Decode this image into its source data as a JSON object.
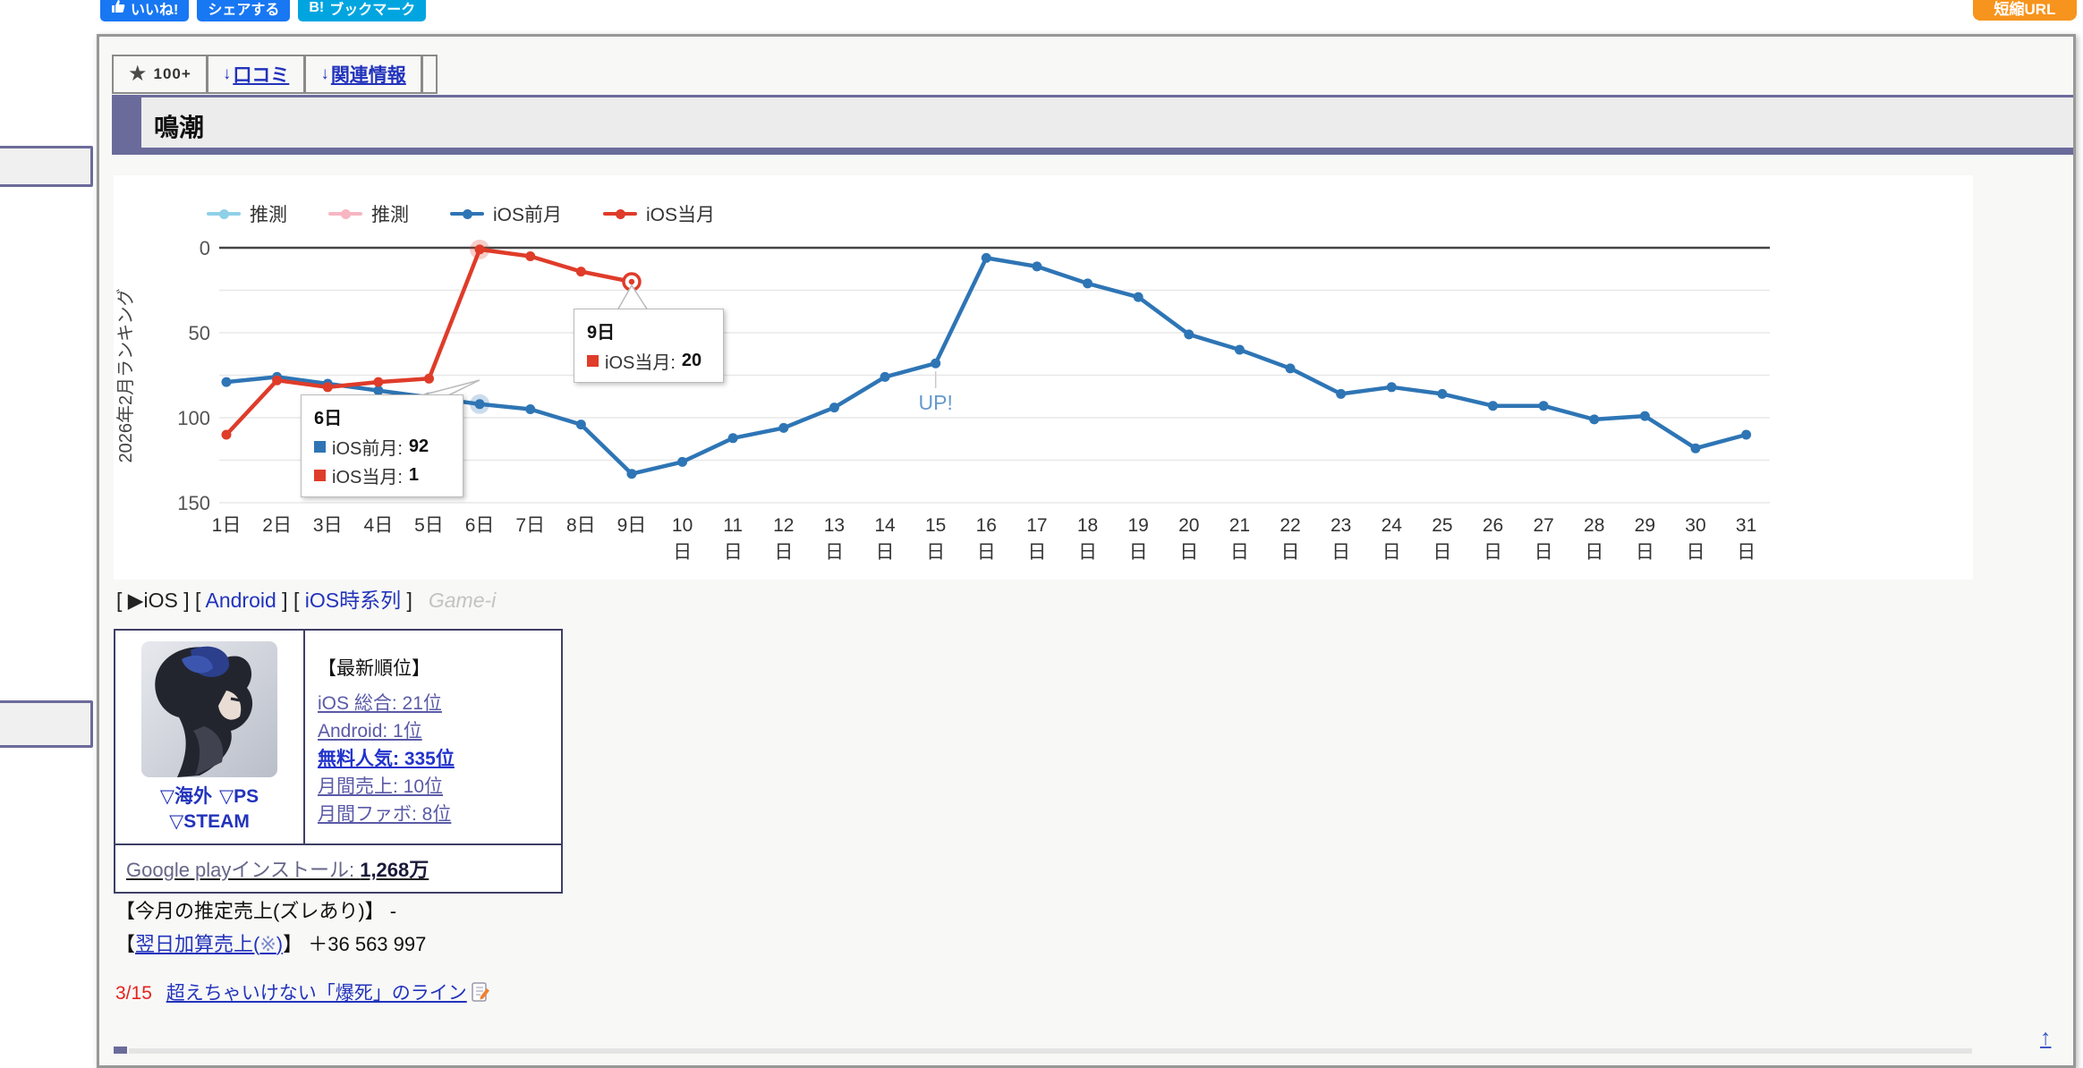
{
  "social": {
    "like": "いいね!",
    "share": "シェアする",
    "bookmark_prefix": "B!",
    "bookmark": "ブックマーク",
    "shorturl": "短縮URL"
  },
  "tabs": {
    "star": "★",
    "star_count": "100+",
    "arrow": "↓",
    "reviews": "口コミ",
    "related": "関連情報"
  },
  "page_title": "鳴潮",
  "chart_data": {
    "type": "line",
    "ylabel": "2026年2月ランキング",
    "y_ticks": [
      0,
      50,
      100,
      150
    ],
    "y_grid_step": 25,
    "ylim": [
      0,
      150
    ],
    "y_axis_inverted": true,
    "grid": true,
    "legend_position": "top",
    "x_labels": [
      "1日",
      "2日",
      "3日",
      "4日",
      "5日",
      "6日",
      "7日",
      "8日",
      "9日",
      "10日",
      "11日",
      "12日",
      "13日",
      "14日",
      "15日",
      "16日",
      "17日",
      "18日",
      "19日",
      "20日",
      "21日",
      "22日",
      "23日",
      "24日",
      "25日",
      "26日",
      "27日",
      "28日",
      "29日",
      "30日",
      "31日"
    ],
    "series": [
      {
        "name": "推測",
        "color": "#8fd0e8",
        "values": []
      },
      {
        "name": "推測",
        "color": "#f7b6c2",
        "values": []
      },
      {
        "name": "iOS前月",
        "color": "#2e75b5",
        "values": [
          79,
          76,
          80,
          84,
          88,
          92,
          95,
          104,
          133,
          126,
          112,
          106,
          94,
          76,
          68,
          6,
          11,
          21,
          29,
          51,
          60,
          71,
          86,
          82,
          86,
          93,
          93,
          101,
          99,
          118,
          110
        ]
      },
      {
        "name": "iOS当月",
        "color": "#df3c2a",
        "values": [
          110,
          78,
          82,
          79,
          77,
          1,
          5,
          14,
          20
        ]
      }
    ],
    "annotations": [
      {
        "text": "UP!",
        "day": 15,
        "series": "iOS前月",
        "color": "#6699cc"
      }
    ],
    "highlight_point": {
      "series": "iOS当月",
      "day": 9,
      "style": "ring"
    },
    "tooltips": [
      {
        "title": "6日",
        "rows": [
          {
            "label": "iOS前月",
            "value": "92",
            "color": "#2e75b5"
          },
          {
            "label": "iOS当月",
            "value": "1",
            "color": "#df3c2a"
          }
        ]
      },
      {
        "title": "9日",
        "rows": [
          {
            "label": "iOS当月",
            "value": "20",
            "color": "#df3c2a"
          }
        ]
      }
    ]
  },
  "chart_links": {
    "seg1": "[ ▶iOS ] [ ",
    "android": "Android",
    "seg2": " ] [ ",
    "timeseries": "iOS時系列",
    "seg3": " ]",
    "watermark": "Game-i"
  },
  "info_box": {
    "platform_links": [
      "▽海外",
      "▽PS",
      "▽STEAM"
    ],
    "rank_heading": "【最新順位】",
    "ranks": [
      "iOS 総合: 21位",
      "Android: 1位",
      "無料人気: 335位",
      "月間売上: 10位",
      "月間ファボ: 8位"
    ],
    "google_play_label": "Google playインストール: ",
    "google_play_value": "1,268万"
  },
  "sales": {
    "line1_label": "【今月の推定売上(ズレあり)】",
    "line1_value": "-",
    "line2_open": "【",
    "line2_link": "翌日加算売上(",
    "line2_note": "※",
    "line2_close_paren": ")",
    "line2_close": "】",
    "line2_value": "＋36 563 997"
  },
  "news": {
    "date": "3/15",
    "link": "超えちゃいけない「爆死」のライン"
  },
  "page_top_label": "↑",
  "colors": {
    "accent_purple": "#6b6b9b",
    "line_blue": "#2e75b5",
    "line_red": "#df3c2a",
    "guess_lightblue": "#8fd0e8",
    "guess_pink": "#f7b6c2",
    "up_label": "#6699cc",
    "link_blue": "#2233bb",
    "visited_link": "#5a5aa8",
    "shorturl_orange": "#f7941d",
    "facebook_blue": "#1877f2",
    "hatena_blue": "#00a5e0",
    "news_red": "#e3231e"
  }
}
